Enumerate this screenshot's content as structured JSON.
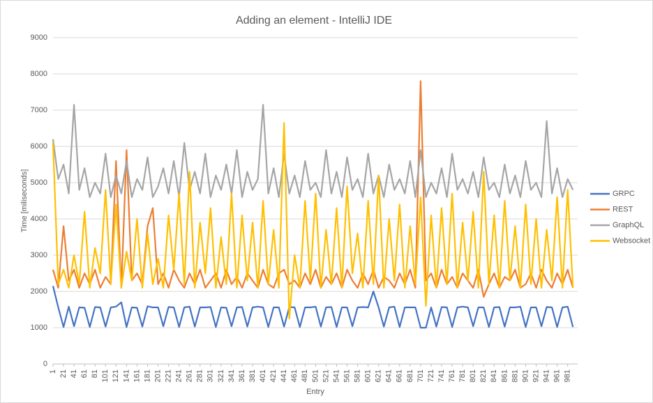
{
  "chart_data": {
    "type": "line",
    "title": "Adding an element - IntelliJ IDE",
    "x_label": "Entry",
    "y_label": "Time [miliseconds]",
    "x": [
      1,
      11,
      21,
      31,
      41,
      51,
      61,
      71,
      81,
      91,
      101,
      111,
      121,
      131,
      141,
      151,
      161,
      171,
      181,
      191,
      201,
      211,
      221,
      231,
      241,
      251,
      261,
      271,
      281,
      291,
      301,
      311,
      321,
      331,
      341,
      351,
      361,
      371,
      381,
      391,
      401,
      411,
      421,
      431,
      441,
      451,
      461,
      471,
      481,
      491,
      501,
      511,
      521,
      531,
      541,
      551,
      561,
      571,
      581,
      591,
      601,
      611,
      621,
      631,
      641,
      651,
      661,
      671,
      681,
      691,
      701,
      711,
      721,
      731,
      741,
      751,
      761,
      771,
      781,
      791,
      801,
      811,
      821,
      831,
      841,
      851,
      861,
      871,
      881,
      891,
      901,
      911,
      921,
      931,
      941,
      951,
      961,
      971,
      981,
      991
    ],
    "series": [
      {
        "name": "GRPC",
        "color": "#4472c4",
        "values": [
          2150,
          1560,
          1020,
          1580,
          1040,
          1560,
          1550,
          1020,
          1570,
          1560,
          1030,
          1560,
          1580,
          1700,
          1020,
          1560,
          1550,
          1030,
          1590,
          1560,
          1560,
          1040,
          1570,
          1560,
          1020,
          1560,
          1580,
          1030,
          1560,
          1560,
          1570,
          1020,
          1560,
          1550,
          1040,
          1560,
          1570,
          1030,
          1560,
          1580,
          1560,
          1020,
          1560,
          1560,
          1030,
          1570,
          1560,
          1020,
          1560,
          1560,
          1580,
          1030,
          1560,
          1570,
          1020,
          1560,
          1560,
          1040,
          1560,
          1570,
          1560,
          2000,
          1560,
          1030,
          1560,
          1580,
          1020,
          1560,
          1560,
          1560,
          1000,
          1000,
          1560,
          1030,
          1570,
          1560,
          1020,
          1560,
          1580,
          1560,
          1040,
          1560,
          1560,
          1020,
          1560,
          1570,
          1030,
          1560,
          1560,
          1580,
          1020,
          1560,
          1560,
          1040,
          1570,
          1560,
          1020,
          1560,
          1580,
          1020
        ]
      },
      {
        "name": "REST",
        "color": "#ed7d31",
        "values": [
          2600,
          2100,
          3800,
          2300,
          2600,
          2100,
          2500,
          2200,
          2600,
          2100,
          2400,
          2200,
          5600,
          2100,
          5900,
          2300,
          2500,
          2200,
          3800,
          4300,
          2200,
          2500,
          2100,
          2600,
          2300,
          2100,
          2500,
          2200,
          2600,
          2100,
          2300,
          2500,
          2100,
          2600,
          2200,
          2400,
          2100,
          2500,
          2300,
          2100,
          2600,
          2200,
          2100,
          2500,
          2600,
          2200,
          2300,
          2100,
          2500,
          2200,
          2600,
          2100,
          2400,
          2200,
          2500,
          2100,
          2600,
          2300,
          2100,
          2500,
          2200,
          2600,
          2100,
          2400,
          2300,
          2100,
          2500,
          2200,
          2600,
          2100,
          7800,
          2300,
          2500,
          2100,
          2600,
          2200,
          2400,
          2100,
          2500,
          2300,
          2100,
          2600,
          1850,
          2200,
          2500,
          2100,
          2400,
          2300,
          2600,
          2100,
          2200,
          2500,
          2100,
          2600,
          2300,
          2100,
          2500,
          2200,
          2600,
          2100
        ]
      },
      {
        "name": "GraphQL",
        "color": "#a5a5a5",
        "values": [
          6200,
          5100,
          5500,
          4700,
          7150,
          4800,
          5400,
          4600,
          5000,
          4700,
          5800,
          4600,
          5200,
          4700,
          5600,
          4600,
          5100,
          4800,
          5700,
          4600,
          4900,
          5400,
          4700,
          5600,
          4600,
          6100,
          4800,
          5300,
          4700,
          5800,
          4600,
          5200,
          4800,
          5500,
          4700,
          5900,
          4600,
          5300,
          4800,
          5100,
          7150,
          4700,
          5400,
          4600,
          5800,
          4700,
          5200,
          4600,
          5600,
          4800,
          5000,
          4600,
          5900,
          4700,
          5300,
          4600,
          5700,
          4800,
          5100,
          4600,
          5800,
          4700,
          5200,
          4600,
          5500,
          4800,
          5100,
          4700,
          5600,
          4600,
          5900,
          4600,
          5000,
          4700,
          5400,
          4600,
          5800,
          4800,
          5100,
          4700,
          5300,
          4600,
          5700,
          4800,
          5000,
          4600,
          5500,
          4700,
          5200,
          4600,
          5600,
          4800,
          5000,
          4600,
          6700,
          4700,
          5400,
          4600,
          5100,
          4800
        ]
      },
      {
        "name": "Websocket",
        "color": "#ffc000",
        "values": [
          6100,
          2200,
          2600,
          2100,
          3000,
          2200,
          4200,
          2100,
          3200,
          2500,
          4800,
          2200,
          4400,
          2100,
          3100,
          2300,
          4000,
          2100,
          3600,
          2200,
          2900,
          2100,
          4100,
          2600,
          4700,
          2200,
          5300,
          2100,
          3900,
          2500,
          4300,
          2100,
          3500,
          2200,
          4700,
          2100,
          4100,
          2300,
          3900,
          2100,
          4500,
          2200,
          3700,
          2100,
          6650,
          1250,
          3000,
          2100,
          4500,
          2300,
          4700,
          2100,
          3700,
          2200,
          4300,
          2100,
          4900,
          2500,
          3600,
          2100,
          4500,
          2200,
          5200,
          2100,
          4000,
          2300,
          4400,
          2100,
          3800,
          2200,
          4600,
          1600,
          4100,
          2100,
          4300,
          2200,
          4700,
          2100,
          3900,
          2300,
          4200,
          2100,
          5300,
          2200,
          4100,
          2100,
          4500,
          2300,
          3800,
          2100,
          4400,
          2200,
          4000,
          2100,
          3700,
          2300,
          4600,
          2100,
          4800,
          2100
        ]
      }
    ],
    "xlim": [
      1,
      1000
    ],
    "xticks": [
      1,
      21,
      41,
      61,
      81,
      101,
      121,
      141,
      161,
      181,
      201,
      221,
      241,
      261,
      281,
      301,
      321,
      341,
      361,
      381,
      401,
      421,
      441,
      461,
      481,
      501,
      521,
      541,
      561,
      581,
      601,
      621,
      641,
      661,
      681,
      701,
      721,
      741,
      761,
      781,
      801,
      821,
      841,
      861,
      881,
      901,
      921,
      941,
      961,
      981
    ],
    "ylim": [
      0,
      9000
    ],
    "yticks": [
      0,
      1000,
      2000,
      3000,
      4000,
      5000,
      6000,
      7000,
      8000,
      9000
    ],
    "grid": true,
    "legend": "right"
  }
}
